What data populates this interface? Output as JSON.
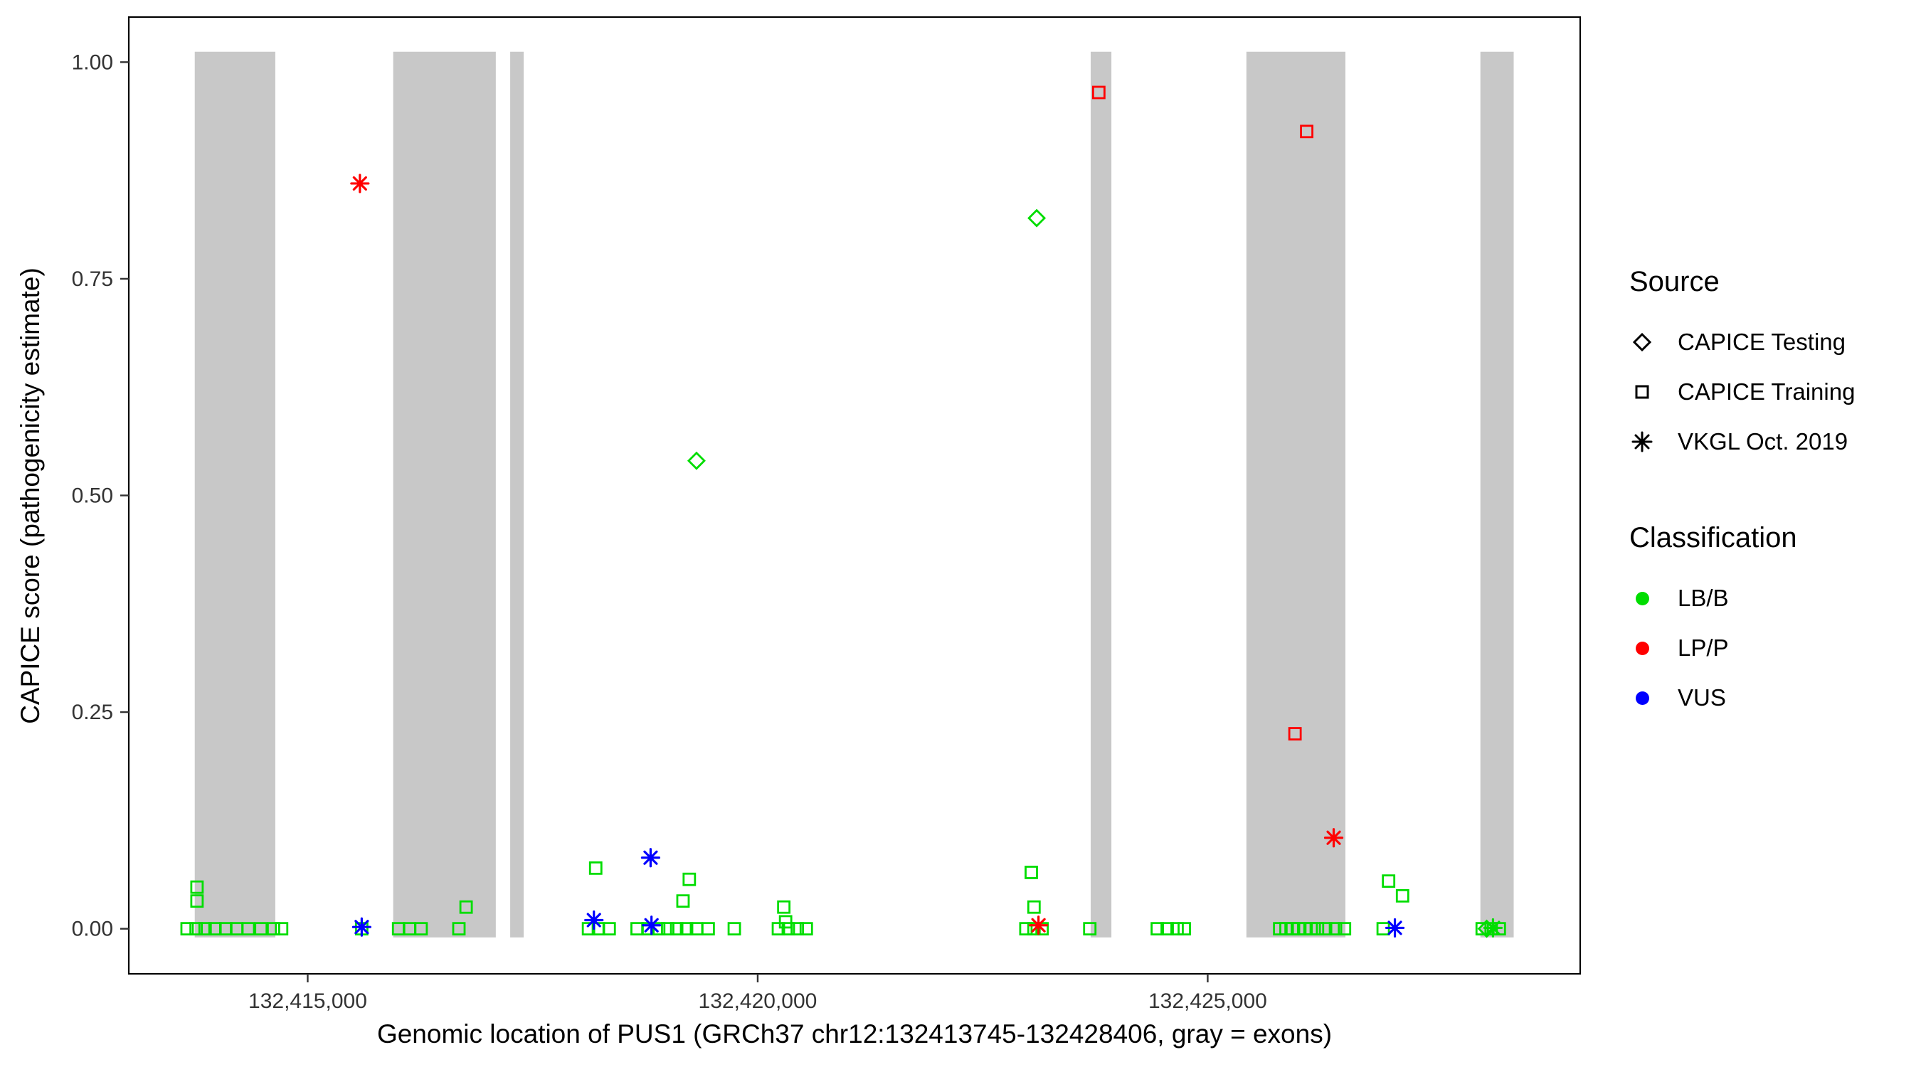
{
  "figure": {
    "xlabel": "Genomic location of PUS1 (GRCh37 chr12:132413745-132428406, gray = exons)",
    "ylabel": "CAPICE score (pathogenicity estimate)"
  },
  "chart_data": {
    "type": "scatter",
    "title": "",
    "xlabel": "Genomic location of PUS1 (GRCh37 chr12:132413745-132428406, gray = exons)",
    "ylabel": "CAPICE score (pathogenicity estimate)",
    "x_domain": [
      132413012,
      132429139
    ],
    "y_domain": [
      -0.052,
      1.052
    ],
    "x_ticks": [
      {
        "value": 132415000,
        "label": "132,415,000"
      },
      {
        "value": 132420000,
        "label": "132,420,000"
      },
      {
        "value": 132425000,
        "label": "132,425,000"
      }
    ],
    "y_ticks": [
      {
        "value": 0.0,
        "label": "0.00"
      },
      {
        "value": 0.25,
        "label": "0.25"
      },
      {
        "value": 0.5,
        "label": "0.50"
      },
      {
        "value": 0.75,
        "label": "0.75"
      },
      {
        "value": 1.0,
        "label": "1.00"
      }
    ],
    "grid": false,
    "exon_color": "#C8C8C8",
    "exon_band_y": [
      -0.01,
      1.012
    ],
    "exons": [
      [
        132413745,
        132414640
      ],
      [
        132415950,
        132417090
      ],
      [
        132417250,
        132417400
      ],
      [
        132423700,
        132423930
      ],
      [
        132425430,
        132426530
      ],
      [
        132428030,
        132428400
      ]
    ],
    "classification_colors": {
      "LB/B": "#00DD00",
      "LP/P": "#FF0000",
      "VUS": "#0000FF"
    },
    "source_shapes": {
      "CAPICE Testing": "diamond",
      "CAPICE Training": "square",
      "VKGL Oct. 2019": "asterisk"
    },
    "series": [
      {
        "source": "CAPICE Training",
        "classification": "LB/B",
        "points": [
          [
            132413770,
            0.048
          ],
          [
            132413770,
            0.032
          ],
          [
            132416760,
            0.025
          ],
          [
            132418200,
            0.07
          ],
          [
            132419240,
            0.057
          ],
          [
            132419170,
            0.032
          ],
          [
            132420290,
            0.025
          ],
          [
            132420310,
            0.008
          ],
          [
            132423040,
            0.065
          ],
          [
            132423070,
            0.025
          ],
          [
            132427010,
            0.055
          ],
          [
            132427165,
            0.038
          ],
          [
            132413660,
            0
          ],
          [
            132413760,
            0
          ],
          [
            132413860,
            0
          ],
          [
            132413970,
            0
          ],
          [
            132414090,
            0
          ],
          [
            132414210,
            0
          ],
          [
            132414340,
            0
          ],
          [
            132414480,
            0
          ],
          [
            132414620,
            0
          ],
          [
            132414710,
            0
          ],
          [
            132415600,
            0
          ],
          [
            132416010,
            0
          ],
          [
            132416130,
            0
          ],
          [
            132416260,
            0
          ],
          [
            132416680,
            0
          ],
          [
            132418120,
            0
          ],
          [
            132418230,
            0
          ],
          [
            132418350,
            0
          ],
          [
            132418660,
            0
          ],
          [
            132418780,
            0
          ],
          [
            132418900,
            0
          ],
          [
            132419000,
            0
          ],
          [
            132419100,
            0
          ],
          [
            132419210,
            0
          ],
          [
            132419320,
            0
          ],
          [
            132419450,
            0
          ],
          [
            132419740,
            0
          ],
          [
            132420230,
            0
          ],
          [
            132420340,
            0
          ],
          [
            132420440,
            0
          ],
          [
            132420540,
            0
          ],
          [
            132422980,
            0
          ],
          [
            132423070,
            0
          ],
          [
            132423160,
            0
          ],
          [
            132423690,
            0
          ],
          [
            132424440,
            0
          ],
          [
            132424550,
            0
          ],
          [
            132424660,
            0
          ],
          [
            132424740,
            0
          ],
          [
            132425800,
            0
          ],
          [
            132425870,
            0
          ],
          [
            132425940,
            0
          ],
          [
            132426010,
            0
          ],
          [
            132426080,
            0
          ],
          [
            132426150,
            0
          ],
          [
            132426220,
            0
          ],
          [
            132426310,
            0
          ],
          [
            132426420,
            0
          ],
          [
            132426520,
            0
          ],
          [
            132426950,
            0
          ],
          [
            132428050,
            0
          ],
          [
            132428150,
            0
          ],
          [
            132428240,
            0
          ]
        ]
      },
      {
        "source": "CAPICE Training",
        "classification": "LP/P",
        "points": [
          [
            132423790,
            0.965
          ],
          [
            132426100,
            0.92
          ],
          [
            132425970,
            0.225
          ]
        ]
      },
      {
        "source": "CAPICE Testing",
        "classification": "LB/B",
        "points": [
          [
            132419320,
            0.54
          ],
          [
            132423100,
            0.82
          ],
          [
            132428100,
            0
          ]
        ]
      },
      {
        "source": "VKGL Oct. 2019",
        "classification": "LP/P",
        "points": [
          [
            132415580,
            0.86
          ],
          [
            132426400,
            0.105
          ],
          [
            132423120,
            0.004
          ]
        ]
      },
      {
        "source": "VKGL Oct. 2019",
        "classification": "VUS",
        "points": [
          [
            132418810,
            0.082
          ],
          [
            132418180,
            0.01
          ],
          [
            132418820,
            0.004
          ],
          [
            132415600,
            0.002
          ],
          [
            132427080,
            0.001
          ]
        ]
      },
      {
        "source": "VKGL Oct. 2019",
        "classification": "LB/B",
        "points": [
          [
            132428170,
            0.001
          ]
        ]
      }
    ]
  },
  "legend": {
    "source": {
      "title": "Source",
      "items": [
        {
          "label": "CAPICE Testing",
          "shape": "diamond"
        },
        {
          "label": "CAPICE Training",
          "shape": "square"
        },
        {
          "label": "VKGL Oct. 2019",
          "shape": "asterisk"
        }
      ]
    },
    "classification": {
      "title": "Classification",
      "items": [
        {
          "label": "LB/B",
          "color": "#00DD00"
        },
        {
          "label": "LP/P",
          "color": "#FF0000"
        },
        {
          "label": "VUS",
          "color": "#0000FF"
        }
      ]
    }
  }
}
